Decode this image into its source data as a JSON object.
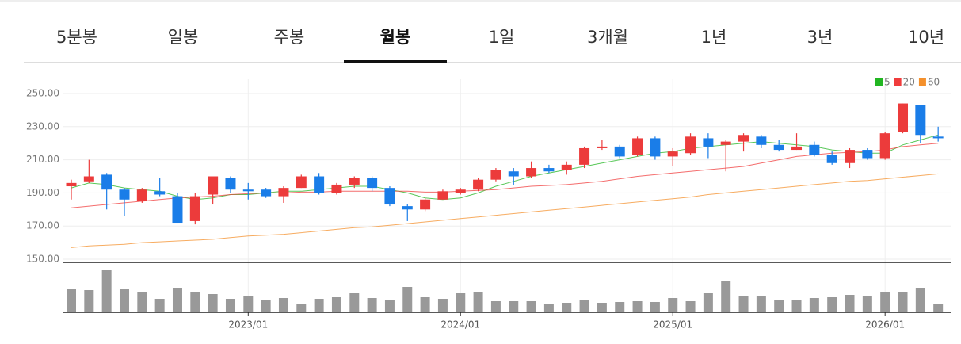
{
  "tabs": {
    "items": [
      "5분봉",
      "일봉",
      "주봉",
      "월봉",
      "1일",
      "3개월",
      "1년",
      "3년",
      "10년"
    ],
    "active": 3
  },
  "chart_data": {
    "type": "candlestick",
    "categories": [
      null,
      null,
      null,
      null,
      null,
      null,
      null,
      null,
      null,
      null,
      "2023/01",
      null,
      null,
      null,
      null,
      null,
      null,
      null,
      null,
      null,
      null,
      null,
      "2024/01",
      null,
      null,
      null,
      null,
      null,
      null,
      null,
      null,
      null,
      null,
      null,
      "2025/01",
      null,
      null,
      null,
      null,
      null,
      null,
      null,
      null,
      null,
      null,
      null,
      "2026/01",
      null,
      null,
      null
    ],
    "open": [
      194,
      197,
      201,
      192,
      185,
      191,
      188,
      173,
      189,
      199,
      192,
      192,
      188,
      193,
      200,
      190,
      195,
      199,
      193,
      182,
      180,
      186,
      190,
      192,
      198,
      203,
      200,
      205,
      204,
      207,
      217,
      218,
      213,
      223,
      212,
      214,
      223,
      219,
      221,
      224,
      219,
      216,
      219,
      213,
      208,
      216,
      211,
      227,
      243,
      224
    ],
    "high": [
      198,
      210,
      202,
      193,
      193,
      199,
      190,
      190,
      200,
      200,
      196,
      193,
      194,
      201,
      202,
      196,
      200,
      200,
      194,
      183,
      187,
      192,
      193,
      199,
      205,
      205,
      209,
      207,
      209,
      218,
      222,
      219,
      224,
      224,
      217,
      226,
      226,
      222,
      226,
      225,
      222,
      226,
      221,
      215,
      217,
      217,
      227,
      244,
      243,
      230
    ],
    "low": [
      186,
      196,
      180,
      176,
      184,
      188,
      172,
      171,
      183,
      190,
      186,
      187,
      184,
      193,
      189,
      189,
      193,
      191,
      182,
      173,
      179,
      186,
      189,
      191,
      197,
      195,
      199,
      202,
      201,
      205,
      216,
      211,
      212,
      210,
      206,
      213,
      211,
      203,
      215,
      217,
      215,
      216,
      212,
      207,
      205,
      210,
      210,
      226,
      220,
      221
    ],
    "close": [
      196,
      200,
      192,
      186,
      192,
      189,
      172,
      188,
      200,
      192,
      191,
      188,
      193,
      200,
      190,
      195,
      199,
      193,
      183,
      180,
      186,
      191,
      192,
      198,
      204,
      200,
      205,
      203,
      207,
      217,
      218,
      212,
      223,
      212,
      215,
      224,
      218,
      221,
      225,
      219,
      216,
      218,
      213,
      208,
      216,
      211,
      226,
      244,
      225,
      223
    ],
    "up_color": "#ec3b3b",
    "down_color": "#1a7de8",
    "series": [
      {
        "name": "5",
        "color": "#22b622",
        "values": [
          193,
          196,
          195,
          193,
          192,
          191,
          188,
          186,
          187,
          189,
          189,
          190,
          191,
          191,
          192,
          193,
          194,
          194,
          192,
          190,
          187,
          186,
          187,
          190,
          194,
          197,
          200,
          202,
          204,
          206,
          208,
          210,
          212,
          214,
          215,
          217,
          218,
          219,
          220,
          221,
          220,
          219,
          218,
          216,
          215,
          214,
          214,
          219,
          222,
          225
        ]
      },
      {
        "name": "20",
        "color": "#f03c3c",
        "values": [
          181,
          182,
          183,
          184,
          185,
          186,
          187,
          187.5,
          188,
          189,
          189.5,
          190,
          190,
          190.5,
          190.5,
          191,
          191,
          191,
          191,
          191,
          190.5,
          190.5,
          191,
          191.5,
          192,
          193,
          194,
          194.5,
          195,
          196,
          197,
          198.5,
          200,
          201,
          202,
          203,
          204,
          205,
          206,
          208,
          210,
          212,
          213,
          214,
          214.5,
          215,
          216,
          218,
          219,
          220
        ]
      },
      {
        "name": "60",
        "color": "#f4902c",
        "values": [
          157,
          158,
          158.5,
          159,
          160,
          160.5,
          161,
          161.5,
          162,
          163,
          164,
          164.5,
          165,
          166,
          167,
          168,
          169,
          169.5,
          170.5,
          171.5,
          172.5,
          173.5,
          174.5,
          175.5,
          176.5,
          177.5,
          178.5,
          179.5,
          180.5,
          181.5,
          182.5,
          183.5,
          184.5,
          185.5,
          186.5,
          187.5,
          189,
          190,
          191,
          192,
          193,
          194,
          195,
          196,
          197,
          197.5,
          198.5,
          199.5,
          200.5,
          201.5
        ]
      }
    ],
    "volume": {
      "color": "#999999",
      "values": [
        30,
        28,
        53,
        29,
        26,
        17,
        31,
        26,
        23,
        17,
        21,
        15,
        18,
        11,
        17,
        19,
        24,
        18,
        16,
        32,
        19,
        17,
        24,
        25,
        14,
        14,
        14,
        10,
        12,
        16,
        12,
        13,
        14,
        13,
        18,
        14,
        24,
        39,
        21,
        21,
        16,
        16,
        18,
        19,
        22,
        20,
        25,
        25,
        31,
        11
      ]
    },
    "ylim": [
      150,
      250
    ],
    "yticks": [
      {
        "value": 150,
        "label": "150.00"
      },
      {
        "value": 170,
        "label": "170.00"
      },
      {
        "value": 190,
        "label": "190.00"
      },
      {
        "value": 210,
        "label": "210.00"
      },
      {
        "value": 230,
        "label": "230.00"
      },
      {
        "value": 250,
        "label": "250.00"
      }
    ],
    "grid": true,
    "legend": "top-right"
  }
}
